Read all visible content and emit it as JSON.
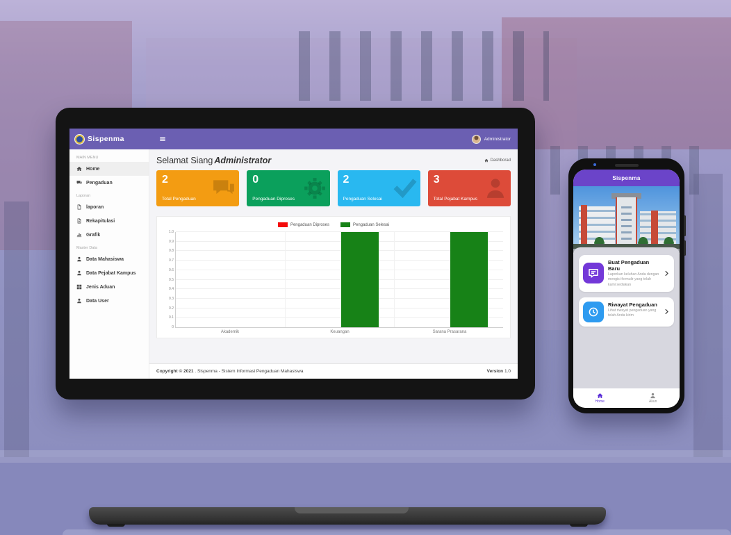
{
  "laptop": {
    "header": {
      "brand": "Sispenma",
      "user": "Administrator"
    },
    "sidebar": {
      "sections": [
        {
          "label": "MAIN MENU",
          "items": [
            {
              "icon": "home-icon",
              "label": "Home",
              "active": true
            },
            {
              "icon": "comments-icon",
              "label": "Pengaduan",
              "active": false
            }
          ]
        },
        {
          "label": "Laporan",
          "items": [
            {
              "icon": "file-icon",
              "label": "laporan",
              "active": false
            },
            {
              "icon": "file-alt-icon",
              "label": "Rekapitulasi",
              "active": false
            },
            {
              "icon": "chart-bar-icon",
              "label": "Grafik",
              "active": false
            }
          ]
        },
        {
          "label": "Master Data",
          "items": [
            {
              "icon": "user-icon",
              "label": "Data Mahasiswa",
              "active": false
            },
            {
              "icon": "user-icon",
              "label": "Data Pejabat Kampus",
              "active": false
            },
            {
              "icon": "grid-icon",
              "label": "Jenis Aduan",
              "active": false
            },
            {
              "icon": "user-icon",
              "label": "Data User",
              "active": false
            }
          ]
        }
      ]
    },
    "main": {
      "greeting_prefix": "Selamat Siang",
      "greeting_user": "Administrator",
      "breadcrumb": "Dashborad",
      "cards": [
        {
          "value": "2",
          "label": "Total Pengaduan",
          "color": "#f39c12",
          "icon": "comments-icon"
        },
        {
          "value": "0",
          "label": "Pengaduan Diproses",
          "color": "#0ba05c",
          "icon": "gear-icon"
        },
        {
          "value": "2",
          "label": "Pengaduan Selesai",
          "color": "#29b8f0",
          "icon": "check-icon"
        },
        {
          "value": "3",
          "label": "Total Pejabat Kampus",
          "color": "#dd4b39",
          "icon": "person-icon"
        }
      ],
      "footer": {
        "copyright_bold": "Copyright © 2021",
        "copyright_rest": " . Sispenma - Sistem Informasi Pengaduan Mahasiswa",
        "version_bold": "Version",
        "version_rest": " 1.0"
      }
    }
  },
  "chart_data": {
    "type": "bar",
    "categories": [
      "Akademik",
      "Keuangan",
      "Sarana Prasarana"
    ],
    "series": [
      {
        "name": "Pengaduan Diproses",
        "color": "#f40b0b",
        "values": [
          0,
          0,
          0
        ]
      },
      {
        "name": "Pengaduan Selesai",
        "color": "#178217",
        "values": [
          0,
          1.0,
          1.0
        ]
      }
    ],
    "ylim": [
      0,
      1.0
    ],
    "ytick_step": 0.1,
    "grid": true,
    "legend_position": "top"
  },
  "phone": {
    "header": "Sispenma",
    "cards": [
      {
        "icon": "chat-icon",
        "icon_color": "#7338d8",
        "title": "Buat Pengaduan Baru",
        "subtitle": "Laporkan keluhan Anda dengan mengisi formulir yang telah kami sediakan"
      },
      {
        "icon": "history-icon",
        "icon_color": "#2e9bf0",
        "title": "Riwayat Pengaduan",
        "subtitle": "Lihat riwayat pengaduan yang telah Anda kirim"
      }
    ],
    "nav": [
      {
        "icon": "home-icon",
        "label": "Home",
        "active": true
      },
      {
        "icon": "person-icon",
        "label": "Akun",
        "active": false
      }
    ]
  }
}
